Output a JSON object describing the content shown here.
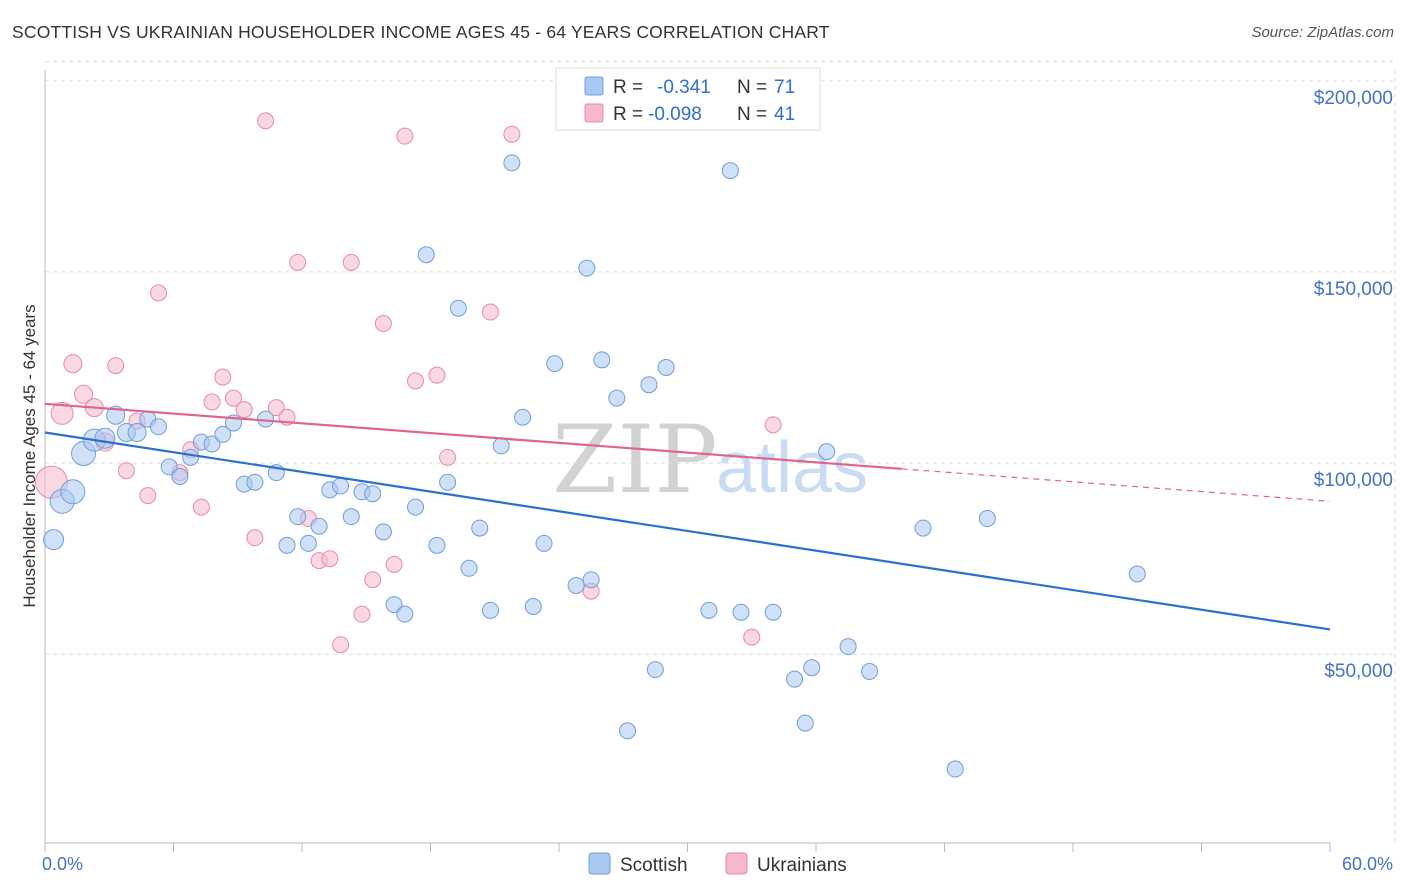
{
  "title": "SCOTTISH VS UKRAINIAN HOUSEHOLDER INCOME AGES 45 - 64 YEARS CORRELATION CHART",
  "source": "Source: ZipAtlas.com",
  "watermark": {
    "zip": "ZIP",
    "atlas": "atlas"
  },
  "colors": {
    "scottish_fill": "#a9c8f0",
    "scottish_stroke": "#6f9fd8",
    "scottish_line": "#2a6fd1",
    "ukrainian_fill": "#f6b8cc",
    "ukrainian_stroke": "#e88aa8",
    "ukrainian_line": "#e0648f",
    "grid": "#dddddd",
    "tick_label": "#4472c4"
  },
  "legend": {
    "rows": [
      {
        "r_label": "R =",
        "r_value": "-0.341",
        "n_label": "N =",
        "n_value": "71"
      },
      {
        "r_label": "R =",
        "r_value": "-0.098",
        "n_label": "N =",
        "n_value": "41"
      }
    ],
    "bottom": [
      "Scottish",
      "Ukrainians"
    ]
  },
  "chart_data": {
    "type": "scatter",
    "ylabel": "Householder Income Ages 45 - 64 years",
    "xlabel": "",
    "x_tick_labels": [
      "0.0%",
      "60.0%"
    ],
    "y_tick_labels": [
      "$200,000",
      "$150,000",
      "$100,000",
      "$50,000"
    ],
    "y_ticks": [
      200000,
      150000,
      100000,
      50000
    ],
    "xlim": [
      0,
      60
    ],
    "ylim": [
      0,
      205000
    ],
    "grid": true,
    "legend_position": "top-center",
    "series": [
      {
        "name": "Scottish",
        "r": -0.341,
        "n": 71,
        "trend": {
          "x": [
            0,
            60
          ],
          "y": [
            108000,
            56500
          ]
        },
        "points": [
          [
            0.4,
            80000,
            10
          ],
          [
            0.8,
            90000,
            12
          ],
          [
            1.3,
            92500,
            12
          ],
          [
            1.8,
            102500,
            12
          ],
          [
            2.3,
            106000,
            11
          ],
          [
            2.8,
            106500,
            10
          ],
          [
            3.3,
            112500,
            9
          ],
          [
            3.8,
            108000,
            9
          ],
          [
            4.3,
            108000,
            9
          ],
          [
            4.8,
            111500,
            8
          ],
          [
            5.3,
            109500,
            8
          ],
          [
            5.8,
            99000,
            8
          ],
          [
            6.3,
            96500,
            8
          ],
          [
            6.8,
            101500,
            8
          ],
          [
            7.3,
            105500,
            8
          ],
          [
            7.8,
            105000,
            8
          ],
          [
            8.3,
            107500,
            8
          ],
          [
            8.8,
            110500,
            8
          ],
          [
            9.3,
            94500,
            8
          ],
          [
            9.8,
            95000,
            8
          ],
          [
            10.3,
            111500,
            8
          ],
          [
            10.8,
            97500,
            8
          ],
          [
            11.3,
            78500,
            8
          ],
          [
            11.8,
            86000,
            8
          ],
          [
            12.3,
            79000,
            8
          ],
          [
            12.8,
            83500,
            8
          ],
          [
            13.3,
            93000,
            8
          ],
          [
            13.8,
            94000,
            8
          ],
          [
            14.3,
            86000,
            8
          ],
          [
            14.8,
            92500,
            8
          ],
          [
            15.3,
            92000,
            8
          ],
          [
            15.8,
            82000,
            8
          ],
          [
            16.3,
            63000,
            8
          ],
          [
            16.8,
            60500,
            8
          ],
          [
            17.3,
            88500,
            8
          ],
          [
            17.8,
            154500,
            8
          ],
          [
            18.3,
            78500,
            8
          ],
          [
            18.8,
            95000,
            8
          ],
          [
            19.3,
            140500,
            8
          ],
          [
            19.8,
            72500,
            8
          ],
          [
            20.3,
            83000,
            8
          ],
          [
            20.8,
            61500,
            8
          ],
          [
            21.3,
            104500,
            8
          ],
          [
            21.8,
            178500,
            8
          ],
          [
            22.3,
            112000,
            8
          ],
          [
            22.8,
            62500,
            8
          ],
          [
            23.3,
            79000,
            8
          ],
          [
            23.8,
            126000,
            8
          ],
          [
            24.8,
            68000,
            8
          ],
          [
            25.3,
            151000,
            8
          ],
          [
            25.5,
            69500,
            8
          ],
          [
            26.0,
            127000,
            8
          ],
          [
            26.7,
            117000,
            8
          ],
          [
            27.2,
            30000,
            8
          ],
          [
            28.2,
            120500,
            8
          ],
          [
            28.5,
            46000,
            8
          ],
          [
            29.0,
            125000,
            8
          ],
          [
            31.0,
            61500,
            8
          ],
          [
            32.0,
            176500,
            8
          ],
          [
            32.5,
            61000,
            8
          ],
          [
            34.0,
            61000,
            8
          ],
          [
            35.0,
            43500,
            8
          ],
          [
            35.5,
            32000,
            8
          ],
          [
            35.8,
            46500,
            8
          ],
          [
            36.5,
            103000,
            8
          ],
          [
            37.5,
            52000,
            8
          ],
          [
            38.5,
            45500,
            8
          ],
          [
            41.0,
            83000,
            8
          ],
          [
            42.5,
            20000,
            8
          ],
          [
            44.0,
            85500,
            8
          ],
          [
            51.0,
            71000,
            8
          ]
        ]
      },
      {
        "name": "Ukrainians",
        "r": -0.098,
        "n": 41,
        "trend": {
          "x": [
            0,
            40
          ],
          "y": [
            115500,
            98500
          ]
        },
        "trend_dashed": {
          "x": [
            40,
            60
          ],
          "y": [
            98500,
            90000
          ]
        },
        "points": [
          [
            0.3,
            95000,
            16
          ],
          [
            0.8,
            113000,
            11
          ],
          [
            1.3,
            126000,
            9
          ],
          [
            1.8,
            118000,
            9
          ],
          [
            2.3,
            114500,
            9
          ],
          [
            2.8,
            105500,
            9
          ],
          [
            3.3,
            125500,
            8
          ],
          [
            3.8,
            98000,
            8
          ],
          [
            4.3,
            111000,
            8
          ],
          [
            4.8,
            91500,
            8
          ],
          [
            5.3,
            144500,
            8
          ],
          [
            6.3,
            97500,
            8
          ],
          [
            6.8,
            103500,
            8
          ],
          [
            7.3,
            88500,
            8
          ],
          [
            7.8,
            116000,
            8
          ],
          [
            8.3,
            122500,
            8
          ],
          [
            8.8,
            117000,
            8
          ],
          [
            9.3,
            114000,
            8
          ],
          [
            9.8,
            80500,
            8
          ],
          [
            10.3,
            189500,
            8
          ],
          [
            10.8,
            114500,
            8
          ],
          [
            11.3,
            112000,
            8
          ],
          [
            11.8,
            152500,
            8
          ],
          [
            12.3,
            85500,
            8
          ],
          [
            12.8,
            74500,
            8
          ],
          [
            13.3,
            75000,
            8
          ],
          [
            13.8,
            52500,
            8
          ],
          [
            14.3,
            152500,
            8
          ],
          [
            14.8,
            60500,
            8
          ],
          [
            15.3,
            69500,
            8
          ],
          [
            15.8,
            136500,
            8
          ],
          [
            16.3,
            73500,
            8
          ],
          [
            16.8,
            185500,
            8
          ],
          [
            17.3,
            121500,
            8
          ],
          [
            18.3,
            123000,
            8
          ],
          [
            18.8,
            101500,
            8
          ],
          [
            20.8,
            139500,
            8
          ],
          [
            21.8,
            186000,
            8
          ],
          [
            25.5,
            66500,
            8
          ],
          [
            33.0,
            54500,
            8
          ],
          [
            34.0,
            110000,
            8
          ]
        ]
      }
    ]
  }
}
